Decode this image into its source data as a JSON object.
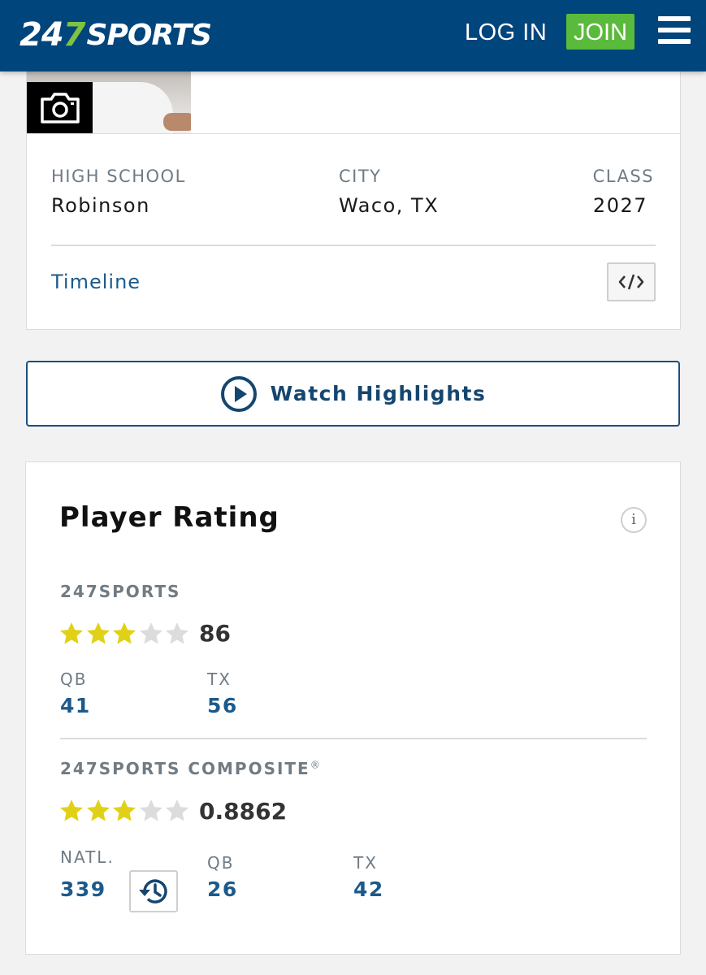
{
  "header": {
    "logo_part1": "24",
    "logo_part2": "7",
    "logo_part3": "SPORTS",
    "login_label": "LOG IN",
    "join_label": "JOIN",
    "brand_color": "#00457c",
    "join_color": "#5aba3b"
  },
  "profile": {
    "high_school_label": "HIGH SCHOOL",
    "high_school_value": "Robinson",
    "city_label": "CITY",
    "city_value": "Waco, TX",
    "class_label": "CLASS",
    "class_value": "2027",
    "timeline_label": "Timeline",
    "embed_label": "</>"
  },
  "highlights": {
    "label": "Watch Highlights"
  },
  "rating": {
    "title": "Player Rating",
    "info_glyph": "i",
    "sports247": {
      "label": "247SPORTS",
      "stars": 3,
      "max_stars": 5,
      "score": "86",
      "ranks": [
        {
          "label": "QB",
          "value": "41"
        },
        {
          "label": "TX",
          "value": "56"
        }
      ]
    },
    "composite": {
      "label": "247SPORTS COMPOSITE",
      "registered": "®",
      "stars": 3,
      "max_stars": 5,
      "score": "0.8862",
      "ranks": [
        {
          "label": "NATL.",
          "value": "339"
        },
        {
          "label": "QB",
          "value": "26"
        },
        {
          "label": "TX",
          "value": "42"
        }
      ]
    },
    "star_on_color": "#e1d116",
    "star_off_color": "#dcdcdc"
  }
}
